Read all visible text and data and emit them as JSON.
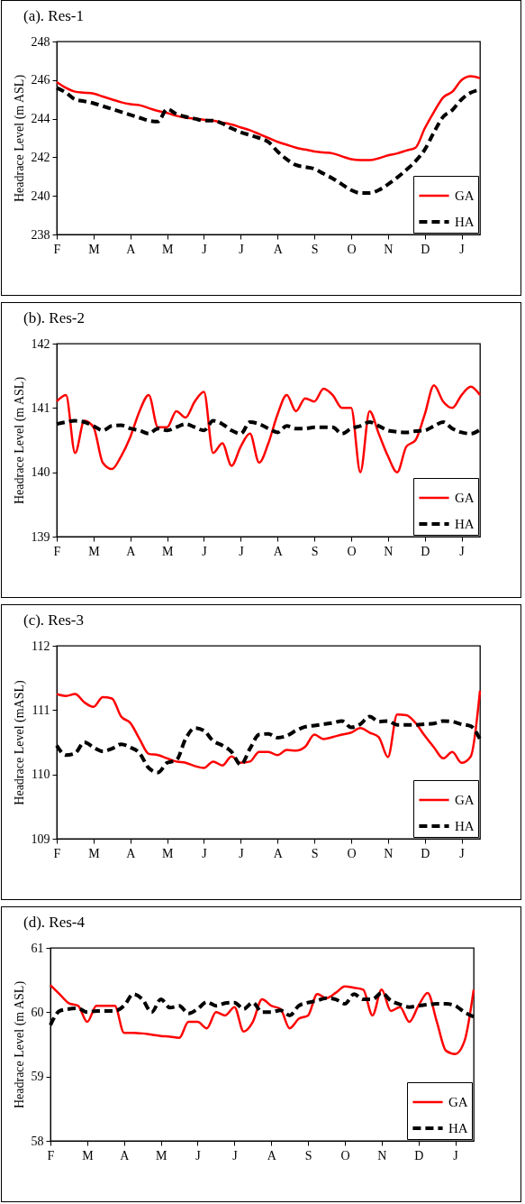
{
  "chart_data": [
    {
      "type": "line",
      "title": "(a). Res-1",
      "ylabel": "Headrace Level  (m ASL)",
      "categories": [
        "F",
        null,
        null,
        null,
        "M",
        null,
        null,
        null,
        "A",
        null,
        null,
        null,
        "M",
        null,
        null,
        null,
        "J",
        null,
        null,
        null,
        "J",
        null,
        null,
        null,
        "A",
        null,
        null,
        null,
        "S",
        null,
        null,
        null,
        "O",
        null,
        null,
        null,
        "N",
        null,
        null,
        null,
        "D",
        null,
        null,
        null,
        "J",
        null,
        null
      ],
      "ylim": [
        238,
        248
      ],
      "yticks": [
        238,
        240,
        242,
        244,
        246,
        248
      ],
      "legend": "bottom right",
      "series": [
        {
          "name": "GA",
          "color": "#ff0000",
          "line_style": "solid",
          "values": [
            245.9,
            245.6,
            245.4,
            245.35,
            245.3,
            245.15,
            245.0,
            244.85,
            244.75,
            244.7,
            244.55,
            244.4,
            244.3,
            244.15,
            244.05,
            244.0,
            243.95,
            243.9,
            243.8,
            243.7,
            243.55,
            243.4,
            243.2,
            243.0,
            242.8,
            242.65,
            242.5,
            242.4,
            242.3,
            242.25,
            242.2,
            242.05,
            241.9,
            241.85,
            241.85,
            241.95,
            242.1,
            242.2,
            242.35,
            242.5,
            243.5,
            244.35,
            245.1,
            245.4,
            246.0,
            246.2,
            246.1
          ]
        },
        {
          "name": "HA",
          "color": "#000000",
          "line_style": "dashed",
          "values": [
            245.6,
            245.35,
            245.0,
            244.9,
            244.8,
            244.65,
            244.5,
            244.35,
            244.2,
            244.05,
            243.9,
            243.85,
            244.5,
            244.25,
            244.1,
            244.0,
            243.9,
            243.9,
            243.75,
            243.5,
            243.3,
            243.15,
            243.0,
            242.8,
            242.3,
            241.9,
            241.6,
            241.5,
            241.4,
            241.15,
            240.9,
            240.6,
            240.3,
            240.15,
            240.15,
            240.3,
            240.6,
            240.95,
            241.35,
            241.8,
            242.4,
            243.3,
            244.1,
            244.45,
            245.0,
            245.35,
            245.5
          ]
        }
      ]
    },
    {
      "type": "line",
      "title": "(b). Res-2",
      "ylabel": "Headrace Level  (m ASL)",
      "categories": [
        "F",
        null,
        null,
        null,
        "M",
        null,
        null,
        null,
        "A",
        null,
        null,
        null,
        "M",
        null,
        null,
        null,
        "J",
        null,
        null,
        null,
        "J",
        null,
        null,
        null,
        "A",
        null,
        null,
        null,
        "S",
        null,
        null,
        null,
        "O",
        null,
        null,
        null,
        "N",
        null,
        null,
        null,
        "D",
        null,
        null,
        null,
        "J",
        null,
        null
      ],
      "ylim": [
        139,
        142
      ],
      "yticks": [
        139,
        140,
        141,
        142
      ],
      "legend": "bottom right",
      "series": [
        {
          "name": "GA",
          "color": "#ff0000",
          "line_style": "solid",
          "values": [
            141.1,
            141.2,
            140.3,
            140.8,
            140.7,
            140.15,
            140.05,
            140.25,
            140.55,
            140.95,
            141.2,
            140.7,
            140.7,
            140.95,
            140.85,
            141.1,
            141.25,
            140.3,
            140.45,
            140.1,
            140.4,
            140.6,
            140.15,
            140.45,
            140.9,
            141.2,
            140.95,
            141.15,
            141.1,
            141.3,
            141.2,
            141.0,
            141.0,
            140.0,
            140.95,
            140.6,
            140.25,
            140.0,
            140.4,
            140.5,
            140.9,
            141.35,
            141.1,
            141.0,
            141.2,
            141.33,
            141.2
          ]
        },
        {
          "name": "HA",
          "color": "#000000",
          "line_style": "dashed",
          "values": [
            140.75,
            140.78,
            140.8,
            140.78,
            140.72,
            140.65,
            140.72,
            140.73,
            140.68,
            140.65,
            140.6,
            140.68,
            140.65,
            140.7,
            140.75,
            140.7,
            140.65,
            140.8,
            140.75,
            140.65,
            140.6,
            140.78,
            140.75,
            140.68,
            140.62,
            140.72,
            140.68,
            140.68,
            140.7,
            140.7,
            140.7,
            140.6,
            140.68,
            140.72,
            140.78,
            140.72,
            140.65,
            140.63,
            140.62,
            140.64,
            140.65,
            140.72,
            140.78,
            140.68,
            140.62,
            140.6,
            140.66
          ]
        }
      ]
    },
    {
      "type": "line",
      "title": "(c). Res-3",
      "ylabel": "Headrace Level  (mASL)",
      "categories": [
        "F",
        null,
        null,
        null,
        "M",
        null,
        null,
        null,
        "A",
        null,
        null,
        null,
        "M",
        null,
        null,
        null,
        "J",
        null,
        null,
        null,
        "J",
        null,
        null,
        null,
        "A",
        null,
        null,
        null,
        "S",
        null,
        null,
        null,
        "O",
        null,
        null,
        null,
        "N",
        null,
        null,
        null,
        "D",
        null,
        null,
        null,
        "J",
        null,
        null
      ],
      "ylim": [
        109,
        112
      ],
      "yticks": [
        109,
        110,
        111,
        112
      ],
      "legend": "bottom right",
      "series": [
        {
          "name": "GA",
          "color": "#ff0000",
          "line_style": "solid",
          "values": [
            111.25,
            111.22,
            111.25,
            111.12,
            111.05,
            111.2,
            111.18,
            110.9,
            110.8,
            110.55,
            110.32,
            110.3,
            110.25,
            110.2,
            110.18,
            110.13,
            110.1,
            110.2,
            110.14,
            110.28,
            110.18,
            110.2,
            110.35,
            110.35,
            110.3,
            110.38,
            110.37,
            110.43,
            110.62,
            110.55,
            110.58,
            110.62,
            110.65,
            110.72,
            110.65,
            110.58,
            110.27,
            110.93,
            110.92,
            110.8,
            110.6,
            110.42,
            110.25,
            110.35,
            110.18,
            110.28,
            111.3
          ]
        },
        {
          "name": "HA",
          "color": "#000000",
          "line_style": "dashed",
          "values": [
            110.45,
            110.3,
            110.33,
            110.5,
            110.42,
            110.36,
            110.4,
            110.47,
            110.42,
            110.33,
            110.1,
            110.03,
            110.18,
            110.22,
            110.55,
            110.72,
            110.68,
            110.52,
            110.45,
            110.35,
            110.15,
            110.4,
            110.62,
            110.63,
            110.57,
            110.6,
            110.68,
            110.74,
            110.76,
            110.78,
            110.8,
            110.83,
            110.73,
            110.78,
            110.9,
            110.82,
            110.83,
            110.77,
            110.77,
            110.77,
            110.78,
            110.79,
            110.83,
            110.82,
            110.78,
            110.75,
            110.55
          ]
        }
      ]
    },
    {
      "type": "line",
      "title": "(d). Res-4",
      "ylabel": "Headrace Level  (m ASL)",
      "categories": [
        "F",
        null,
        null,
        null,
        "M",
        null,
        null,
        null,
        "A",
        null,
        null,
        null,
        "M",
        null,
        null,
        null,
        "J",
        null,
        null,
        null,
        "J",
        null,
        null,
        null,
        "A",
        null,
        null,
        null,
        "S",
        null,
        null,
        null,
        "O",
        null,
        null,
        null,
        "N",
        null,
        null,
        null,
        "D",
        null,
        null,
        null,
        "J",
        null,
        null
      ],
      "ylim": [
        58,
        61
      ],
      "yticks": [
        58,
        59,
        60,
        61
      ],
      "legend": "bottom right",
      "series": [
        {
          "name": "GA",
          "color": "#ff0000",
          "line_style": "solid",
          "values": [
            60.42,
            60.28,
            60.14,
            60.1,
            59.85,
            60.1,
            60.1,
            60.1,
            59.68,
            59.68,
            59.67,
            59.65,
            59.63,
            59.62,
            59.6,
            59.85,
            59.85,
            59.75,
            60.0,
            59.95,
            60.08,
            59.7,
            59.85,
            60.2,
            60.1,
            60.05,
            59.75,
            59.9,
            59.95,
            60.28,
            60.22,
            60.3,
            60.4,
            60.38,
            60.35,
            59.95,
            60.35,
            60.02,
            60.08,
            59.85,
            60.1,
            60.3,
            59.85,
            59.4,
            59.35,
            59.55,
            60.35
          ]
        },
        {
          "name": "HA",
          "color": "#000000",
          "line_style": "dashed",
          "values": [
            59.8,
            60.02,
            60.05,
            60.06,
            60.0,
            60.02,
            60.02,
            60.02,
            60.1,
            60.28,
            60.2,
            60.0,
            60.2,
            60.07,
            60.1,
            59.98,
            60.05,
            60.16,
            60.1,
            60.14,
            60.15,
            60.05,
            60.15,
            60.0,
            60.0,
            60.03,
            59.95,
            60.1,
            60.15,
            60.18,
            60.22,
            60.2,
            60.13,
            60.28,
            60.2,
            60.2,
            60.3,
            60.18,
            60.12,
            60.08,
            60.1,
            60.12,
            60.13,
            60.13,
            60.1,
            60.0,
            59.93
          ]
        }
      ]
    }
  ]
}
